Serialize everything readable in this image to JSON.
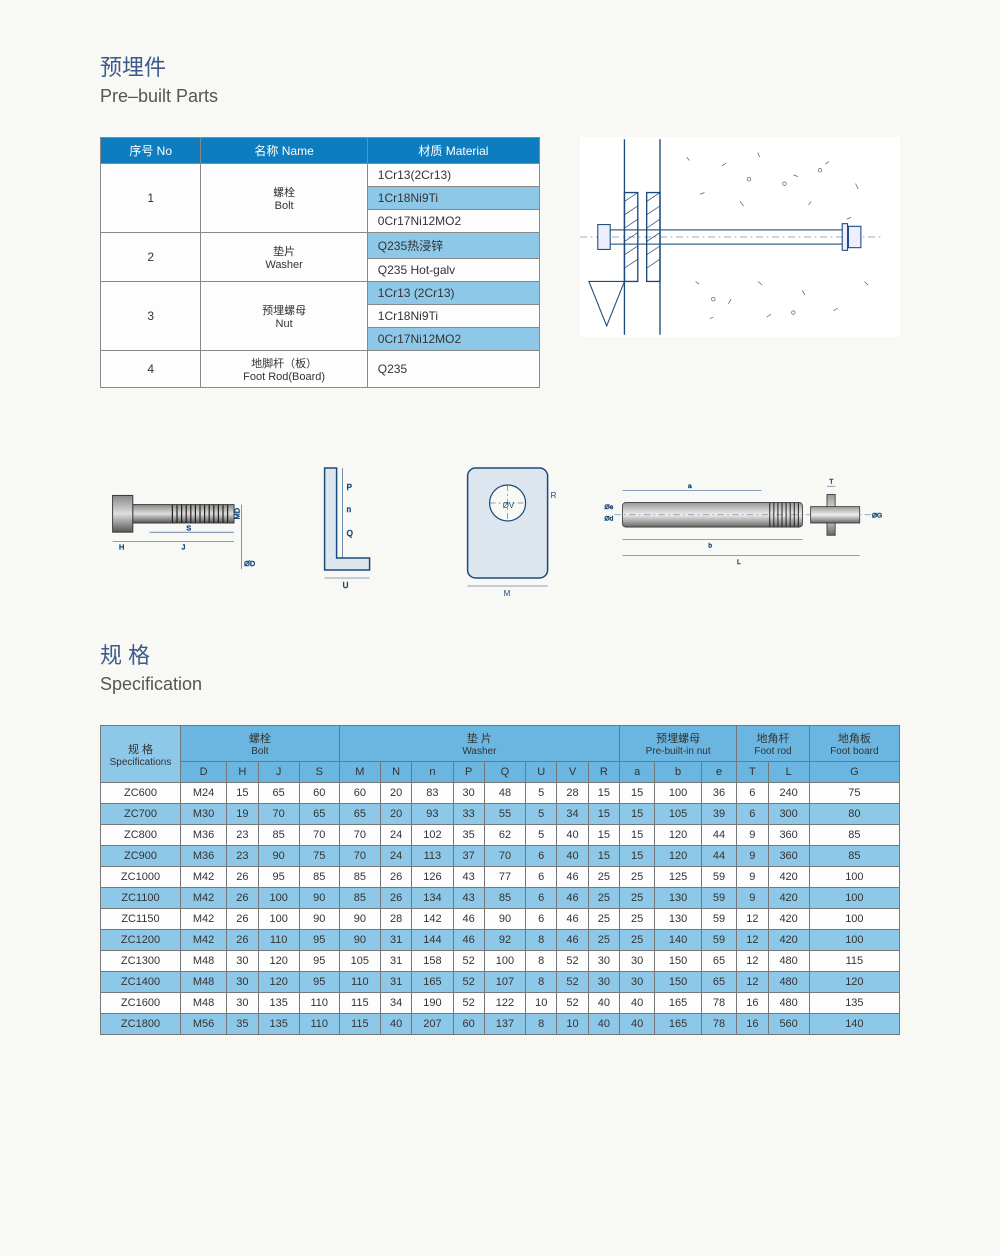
{
  "titles": {
    "main_cn": "预埋件",
    "main_en": "Pre–built Parts",
    "spec_cn": "规 格",
    "spec_en": "Specification"
  },
  "materials": {
    "headers": {
      "no_cn": "序号 No",
      "name_cn": "名称 Name",
      "material_cn": "材质 Material"
    },
    "rows": [
      {
        "no": "1",
        "name_cn": "螺栓",
        "name_en": "Bolt",
        "materials": [
          "1Cr13(2Cr13)",
          "1Cr18Ni9Ti",
          "0Cr17Ni12MO2"
        ]
      },
      {
        "no": "2",
        "name_cn": "垫片",
        "name_en": "Washer",
        "materials": [
          "Q235热浸锌",
          "Q235 Hot-galv"
        ]
      },
      {
        "no": "3",
        "name_cn": "预埋螺母",
        "name_en": "Nut",
        "materials": [
          "1Cr13 (2Cr13)",
          "1Cr18Ni9Ti",
          "0Cr17Ni12MO2"
        ]
      },
      {
        "no": "4",
        "name_cn": "地脚杆（板）",
        "name_en": "Foot Rod(Board)",
        "materials": [
          "Q235"
        ]
      }
    ]
  },
  "spec": {
    "col_label_cn": "规 格",
    "col_label_en": "Specifications",
    "groups": [
      {
        "cn": "螺栓",
        "en": "Bolt",
        "cols": [
          "D",
          "H",
          "J",
          "S"
        ]
      },
      {
        "cn": "垫 片",
        "en": "Washer",
        "cols": [
          "M",
          "N",
          "n",
          "P",
          "Q",
          "U",
          "V",
          "R"
        ]
      },
      {
        "cn": "预埋螺母",
        "en": "Pre-built-in nut",
        "cols": [
          "a",
          "b",
          "e"
        ]
      },
      {
        "cn": "地角杆",
        "en": "Foot rod",
        "cols": [
          "T",
          "L"
        ]
      },
      {
        "cn": "地角板",
        "en": "Foot board",
        "cols": [
          "G"
        ]
      }
    ],
    "rows": [
      {
        "label": "ZC600",
        "v": [
          "M24",
          "15",
          "65",
          "60",
          "60",
          "20",
          "83",
          "30",
          "48",
          "5",
          "28",
          "15",
          "15",
          "100",
          "36",
          "6",
          "240",
          "75"
        ]
      },
      {
        "label": "ZC700",
        "v": [
          "M30",
          "19",
          "70",
          "65",
          "65",
          "20",
          "93",
          "33",
          "55",
          "5",
          "34",
          "15",
          "15",
          "105",
          "39",
          "6",
          "300",
          "80"
        ]
      },
      {
        "label": "ZC800",
        "v": [
          "M36",
          "23",
          "85",
          "70",
          "70",
          "24",
          "102",
          "35",
          "62",
          "5",
          "40",
          "15",
          "15",
          "120",
          "44",
          "9",
          "360",
          "85"
        ]
      },
      {
        "label": "ZC900",
        "v": [
          "M36",
          "23",
          "90",
          "75",
          "70",
          "24",
          "113",
          "37",
          "70",
          "6",
          "40",
          "15",
          "15",
          "120",
          "44",
          "9",
          "360",
          "85"
        ]
      },
      {
        "label": "ZC1000",
        "v": [
          "M42",
          "26",
          "95",
          "85",
          "85",
          "26",
          "126",
          "43",
          "77",
          "6",
          "46",
          "25",
          "25",
          "125",
          "59",
          "9",
          "420",
          "100"
        ]
      },
      {
        "label": "ZC1100",
        "v": [
          "M42",
          "26",
          "100",
          "90",
          "85",
          "26",
          "134",
          "43",
          "85",
          "6",
          "46",
          "25",
          "25",
          "130",
          "59",
          "9",
          "420",
          "100"
        ]
      },
      {
        "label": "ZC1150",
        "v": [
          "M42",
          "26",
          "100",
          "90",
          "90",
          "28",
          "142",
          "46",
          "90",
          "6",
          "46",
          "25",
          "25",
          "130",
          "59",
          "12",
          "420",
          "100"
        ]
      },
      {
        "label": "ZC1200",
        "v": [
          "M42",
          "26",
          "110",
          "95",
          "90",
          "31",
          "144",
          "46",
          "92",
          "8",
          "46",
          "25",
          "25",
          "140",
          "59",
          "12",
          "420",
          "100"
        ]
      },
      {
        "label": "ZC1300",
        "v": [
          "M48",
          "30",
          "120",
          "95",
          "105",
          "31",
          "158",
          "52",
          "100",
          "8",
          "52",
          "30",
          "30",
          "150",
          "65",
          "12",
          "480",
          "115"
        ]
      },
      {
        "label": "ZC1400",
        "v": [
          "M48",
          "30",
          "120",
          "95",
          "110",
          "31",
          "165",
          "52",
          "107",
          "8",
          "52",
          "30",
          "30",
          "150",
          "65",
          "12",
          "480",
          "120"
        ]
      },
      {
        "label": "ZC1600",
        "v": [
          "M48",
          "30",
          "135",
          "110",
          "115",
          "34",
          "190",
          "52",
          "122",
          "10",
          "52",
          "40",
          "40",
          "165",
          "78",
          "16",
          "480",
          "135"
        ]
      },
      {
        "label": "ZC1800",
        "v": [
          "M56",
          "35",
          "135",
          "110",
          "115",
          "40",
          "207",
          "60",
          "137",
          "8",
          "10",
          "40",
          "40",
          "165",
          "78",
          "16",
          "560",
          "140"
        ]
      }
    ]
  },
  "colors": {
    "header_blue": "#0e7dc0",
    "row_blue": "#8ec8e8",
    "spec_header": "#6ab6e0",
    "title_color": "#3c5a8a",
    "border": "#777777",
    "background": "#f8f8f5"
  },
  "dim_labels": {
    "bolt": [
      "H",
      "J",
      "S",
      "MD",
      "ØD"
    ],
    "washer_l": [
      "P",
      "Q",
      "n",
      "U"
    ],
    "washer_flat": [
      "M",
      "R",
      "ØV"
    ],
    "rod": [
      "a",
      "b",
      "L",
      "T",
      "Øe",
      "Ød",
      "ØG"
    ]
  }
}
